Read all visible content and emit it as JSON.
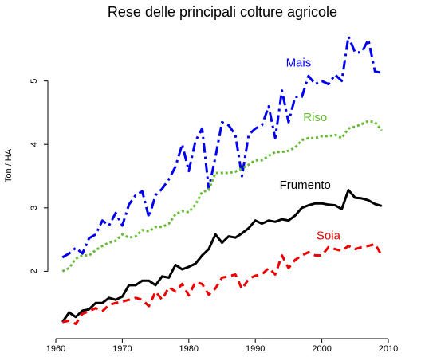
{
  "chart_data": {
    "type": "line",
    "title": "Rese delle principali colture agricole",
    "xlabel": "",
    "ylabel": "Ton / HA",
    "xlim": [
      1960,
      2010
    ],
    "ylim": [
      1.0,
      5.9
    ],
    "x_ticks": [
      1960,
      1970,
      1980,
      1990,
      2000,
      2010
    ],
    "y_ticks": [
      2,
      3,
      4,
      5
    ],
    "grid": false,
    "legend": "none",
    "x": [
      1961,
      1962,
      1963,
      1964,
      1965,
      1966,
      1967,
      1968,
      1969,
      1970,
      1971,
      1972,
      1973,
      1974,
      1975,
      1976,
      1977,
      1978,
      1979,
      1980,
      1981,
      1982,
      1983,
      1984,
      1985,
      1986,
      1987,
      1988,
      1989,
      1990,
      1991,
      1992,
      1993,
      1994,
      1995,
      1996,
      1997,
      1998,
      1999,
      2000,
      2001,
      2002,
      2003,
      2004,
      2005,
      2006,
      2007,
      2008,
      2009
    ],
    "series": [
      {
        "name": "Mais",
        "color": "#0000ee",
        "style": "dashdot",
        "values": [
          2.22,
          2.28,
          2.37,
          2.28,
          2.52,
          2.58,
          2.8,
          2.72,
          2.92,
          2.72,
          3.05,
          3.2,
          3.26,
          2.85,
          3.2,
          3.3,
          3.45,
          3.65,
          4.0,
          3.58,
          4.05,
          4.25,
          3.3,
          3.8,
          4.35,
          4.3,
          4.15,
          3.5,
          4.15,
          4.25,
          4.3,
          4.6,
          4.1,
          4.85,
          4.35,
          4.75,
          4.75,
          5.08,
          4.95,
          5.0,
          4.95,
          5.1,
          5.0,
          5.7,
          5.45,
          5.45,
          5.65,
          5.15,
          5.13
        ]
      },
      {
        "name": "Riso",
        "color": "#66bb33",
        "style": "dotted",
        "values": [
          2.0,
          2.05,
          2.2,
          2.25,
          2.25,
          2.33,
          2.4,
          2.45,
          2.48,
          2.58,
          2.53,
          2.55,
          2.65,
          2.63,
          2.7,
          2.7,
          2.75,
          2.9,
          2.95,
          2.93,
          3.05,
          3.25,
          3.28,
          3.55,
          3.55,
          3.55,
          3.57,
          3.62,
          3.68,
          3.75,
          3.75,
          3.82,
          3.88,
          3.88,
          3.9,
          3.95,
          4.07,
          4.1,
          4.1,
          4.13,
          4.13,
          4.15,
          4.1,
          4.25,
          4.28,
          4.32,
          4.37,
          4.35,
          4.22
        ]
      },
      {
        "name": "Frumento",
        "color": "#000000",
        "style": "solid",
        "values": [
          1.2,
          1.35,
          1.28,
          1.38,
          1.4,
          1.5,
          1.5,
          1.58,
          1.55,
          1.6,
          1.78,
          1.78,
          1.85,
          1.85,
          1.78,
          1.92,
          1.9,
          2.1,
          2.03,
          2.07,
          2.12,
          2.25,
          2.35,
          2.58,
          2.45,
          2.55,
          2.53,
          2.6,
          2.68,
          2.8,
          2.75,
          2.8,
          2.78,
          2.82,
          2.8,
          2.88,
          3.0,
          3.04,
          3.07,
          3.07,
          3.05,
          3.04,
          2.98,
          3.28,
          3.16,
          3.15,
          3.12,
          3.06,
          3.03
        ]
      },
      {
        "name": "Soia",
        "color": "#ee0000",
        "style": "dashed",
        "values": [
          1.2,
          1.22,
          1.17,
          1.33,
          1.37,
          1.42,
          1.37,
          1.47,
          1.5,
          1.52,
          1.55,
          1.58,
          1.55,
          1.45,
          1.68,
          1.55,
          1.75,
          1.68,
          1.8,
          1.62,
          1.83,
          1.8,
          1.63,
          1.73,
          1.9,
          1.92,
          1.95,
          1.72,
          1.88,
          1.93,
          1.95,
          2.05,
          1.95,
          2.25,
          2.05,
          2.18,
          2.25,
          2.3,
          2.25,
          2.25,
          2.38,
          2.35,
          2.32,
          2.4,
          2.35,
          2.38,
          2.4,
          2.43,
          2.25
        ]
      }
    ]
  }
}
